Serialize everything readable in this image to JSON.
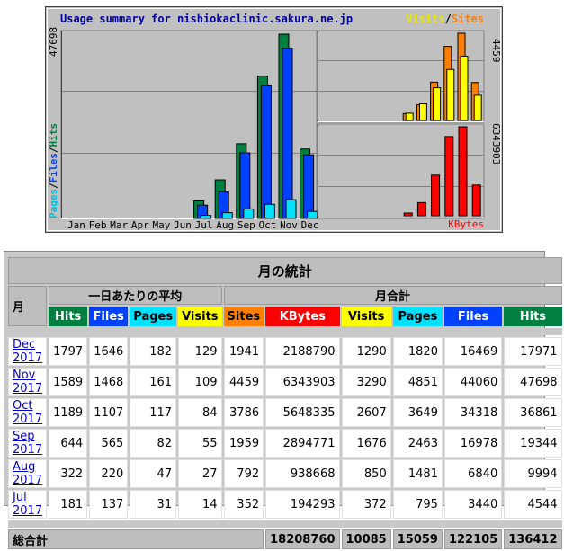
{
  "chart": {
    "title": "Usage summary for nishiokaclinic.sakura.ne.jp",
    "legend_visits": "Visits",
    "legend_sep": "/",
    "legend_sites": "Sites",
    "legend_kbytes": "KBytes",
    "left_axis_max": "47698",
    "left_label_pages": "Pages",
    "left_label_files": "Files",
    "left_label_hits": "Hits",
    "right_top_max": "4459",
    "right_bottom_max": "6343903",
    "months": [
      "Jan",
      "Feb",
      "Mar",
      "Apr",
      "May",
      "Jun",
      "Jul",
      "Aug",
      "Sep",
      "Oct",
      "Nov",
      "Dec"
    ]
  },
  "chart_data": [
    {
      "type": "bar",
      "title": "Usage summary for nishiokaclinic.sakura.ne.jp",
      "categories": [
        "Jan",
        "Feb",
        "Mar",
        "Apr",
        "May",
        "Jun",
        "Jul",
        "Aug",
        "Sep",
        "Oct",
        "Nov",
        "Dec"
      ],
      "series": [
        {
          "name": "Hits",
          "values": [
            0,
            0,
            0,
            0,
            0,
            0,
            4544,
            9994,
            19344,
            36861,
            47698,
            17971
          ]
        },
        {
          "name": "Files",
          "values": [
            0,
            0,
            0,
            0,
            0,
            0,
            3440,
            6840,
            16978,
            34318,
            44060,
            16469
          ]
        },
        {
          "name": "Pages",
          "values": [
            0,
            0,
            0,
            0,
            0,
            0,
            795,
            1481,
            2463,
            3649,
            4851,
            1820
          ]
        }
      ],
      "ylim": [
        0,
        47698
      ]
    },
    {
      "type": "bar",
      "categories": [
        "Jan",
        "Feb",
        "Mar",
        "Apr",
        "May",
        "Jun",
        "Jul",
        "Aug",
        "Sep",
        "Oct",
        "Nov",
        "Dec"
      ],
      "series": [
        {
          "name": "Visits",
          "values": [
            0,
            0,
            0,
            0,
            0,
            0,
            372,
            850,
            1676,
            2607,
            3290,
            1290
          ]
        },
        {
          "name": "Sites",
          "values": [
            0,
            0,
            0,
            0,
            0,
            0,
            352,
            792,
            1959,
            3786,
            4459,
            1941
          ]
        }
      ],
      "ylim": [
        0,
        4459
      ]
    },
    {
      "type": "bar",
      "categories": [
        "Jan",
        "Feb",
        "Mar",
        "Apr",
        "May",
        "Jun",
        "Jul",
        "Aug",
        "Sep",
        "Oct",
        "Nov",
        "Dec"
      ],
      "series": [
        {
          "name": "KBytes",
          "values": [
            0,
            0,
            0,
            0,
            0,
            0,
            194293,
            938668,
            2894771,
            5648335,
            6343903,
            2188790
          ]
        }
      ],
      "ylim": [
        0,
        6343903
      ]
    }
  ],
  "colors": {
    "hits": "#008040",
    "files": "#0040ff",
    "pages": "#00e0ff",
    "visits": "#ffff00",
    "sites": "#ff8000",
    "kbytes": "#ff0000",
    "title": "#0000a0",
    "panel": "#c0c0c0"
  },
  "table": {
    "title": "月の統計",
    "month_header": "月",
    "daily_avg_header": "一日あたりの平均",
    "monthly_total_header": "月合計",
    "cols_avg": [
      "Hits",
      "Files",
      "Pages",
      "Visits"
    ],
    "cols_tot": [
      "Sites",
      "KBytes",
      "Visits",
      "Pages",
      "Files",
      "Hits"
    ],
    "rows": [
      {
        "month": "Dec 2017",
        "avg": [
          "1797",
          "1646",
          "182",
          "129"
        ],
        "tot": [
          "1941",
          "2188790",
          "1290",
          "1820",
          "16469",
          "17971"
        ]
      },
      {
        "month": "Nov 2017",
        "avg": [
          "1589",
          "1468",
          "161",
          "109"
        ],
        "tot": [
          "4459",
          "6343903",
          "3290",
          "4851",
          "44060",
          "47698"
        ]
      },
      {
        "month": "Oct 2017",
        "avg": [
          "1189",
          "1107",
          "117",
          "84"
        ],
        "tot": [
          "3786",
          "5648335",
          "2607",
          "3649",
          "34318",
          "36861"
        ]
      },
      {
        "month": "Sep 2017",
        "avg": [
          "644",
          "565",
          "82",
          "55"
        ],
        "tot": [
          "1959",
          "2894771",
          "1676",
          "2463",
          "16978",
          "19344"
        ]
      },
      {
        "month": "Aug 2017",
        "avg": [
          "322",
          "220",
          "47",
          "27"
        ],
        "tot": [
          "792",
          "938668",
          "850",
          "1481",
          "6840",
          "9994"
        ]
      },
      {
        "month": "Jul 2017",
        "avg": [
          "181",
          "137",
          "31",
          "14"
        ],
        "tot": [
          "352",
          "194293",
          "372",
          "795",
          "3440",
          "4544"
        ]
      }
    ],
    "total_label": "総合計",
    "totals": [
      "18208760",
      "10085",
      "15059",
      "122105",
      "136412"
    ]
  }
}
